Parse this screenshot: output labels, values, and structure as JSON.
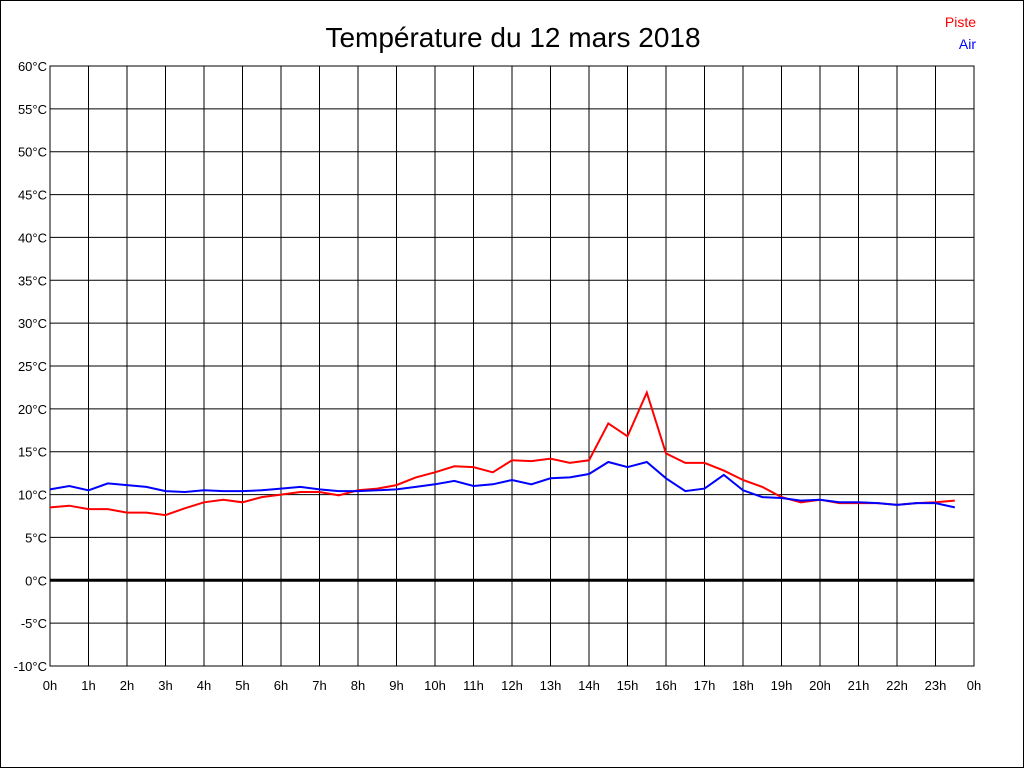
{
  "chart_data": {
    "type": "line",
    "title": "Température du 12 mars 2018",
    "xlabel": "",
    "ylabel": "",
    "ylim": [
      -10,
      60
    ],
    "ytick_step": 5,
    "y_unit": "°C",
    "xlim": [
      0,
      24
    ],
    "x_tick_labels": [
      "0h",
      "1h",
      "2h",
      "3h",
      "4h",
      "5h",
      "6h",
      "7h",
      "8h",
      "9h",
      "10h",
      "11h",
      "12h",
      "13h",
      "14h",
      "15h",
      "16h",
      "17h",
      "18h",
      "19h",
      "20h",
      "21h",
      "22h",
      "23h",
      "0h"
    ],
    "grid": true,
    "legend_position": "top-right",
    "x_hours": [
      0,
      0.5,
      1,
      1.5,
      2,
      2.5,
      3,
      3.5,
      4,
      4.5,
      5,
      5.5,
      6,
      6.5,
      7,
      7.5,
      8,
      8.5,
      9,
      9.5,
      10,
      10.5,
      11,
      11.5,
      12,
      12.5,
      13,
      13.5,
      14,
      14.5,
      15,
      15.5,
      16,
      16.5,
      17,
      17.5,
      18,
      18.5,
      19,
      19.5,
      20,
      20.5,
      21,
      21.5,
      22,
      22.5,
      23,
      23.5
    ],
    "series": [
      {
        "name": "Piste",
        "color": "#ff0000",
        "values": [
          8.5,
          8.7,
          8.3,
          8.3,
          7.9,
          7.9,
          7.6,
          8.4,
          9.1,
          9.4,
          9.1,
          9.7,
          10.0,
          10.3,
          10.3,
          9.9,
          10.5,
          10.7,
          11.1,
          12.0,
          12.6,
          13.3,
          13.2,
          12.6,
          14.0,
          13.9,
          14.2,
          13.7,
          14.0,
          18.3,
          16.8,
          21.9,
          14.8,
          13.7,
          13.7,
          12.8,
          11.7,
          10.9,
          9.7,
          9.1,
          9.4,
          9.0,
          9.0,
          9.0,
          8.8,
          9.0,
          9.1,
          9.3
        ]
      },
      {
        "name": "Air",
        "color": "#0000ff",
        "values": [
          10.6,
          11.0,
          10.5,
          11.3,
          11.1,
          10.9,
          10.4,
          10.3,
          10.5,
          10.4,
          10.4,
          10.5,
          10.7,
          10.9,
          10.6,
          10.4,
          10.4,
          10.5,
          10.6,
          10.9,
          11.2,
          11.6,
          11.0,
          11.2,
          11.7,
          11.2,
          11.9,
          12.0,
          12.4,
          13.8,
          13.2,
          13.8,
          11.9,
          10.4,
          10.7,
          12.3,
          10.5,
          9.7,
          9.6,
          9.3,
          9.4,
          9.1,
          9.1,
          9.0,
          8.8,
          9.0,
          9.0,
          8.5
        ]
      }
    ]
  }
}
